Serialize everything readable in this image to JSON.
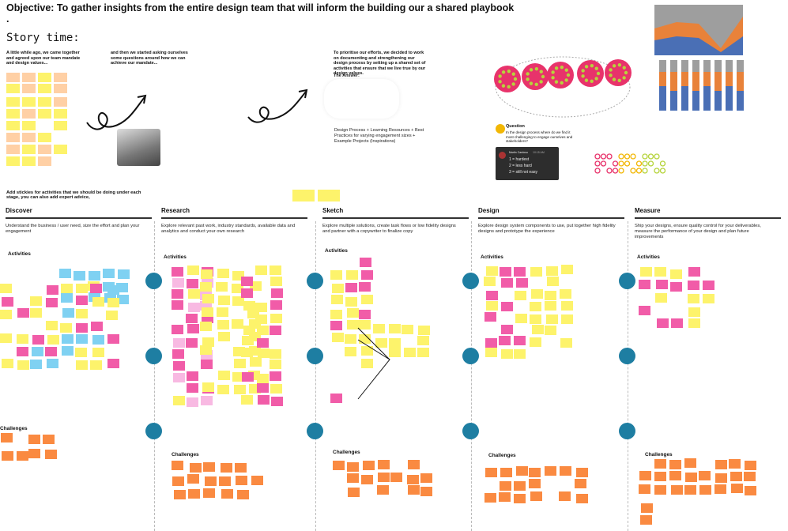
{
  "objective": "Objective: To gather insights from the entire design team that will inform the building our a shared playbook",
  "objective_tail": ".",
  "story_time": "Story time:",
  "intro_1": "A little while ago, we came together and agreed upon our team mandate and design values...",
  "intro_2": "and then we started asking ourselves some questions around how we can achieve our mandate...",
  "intro_3": "To prioritise our efforts, we decided to work on documenting and strengthening our design process by setting up a shared set of activities that ensure that we live true by our design values.",
  "answer_label": "The Answer:",
  "answer_text": "Design Process + Learning Resources + Best Practices for varying engagement sizes + Example Projects (Inspirations)",
  "add_stickies": "Add stickies for activities that we should be doing under each stage, you can also add expert advice,",
  "question_label": "Question",
  "question_text": "In the design process where do we find it most challenging to engage ourselves and stakeholders?",
  "vote_card": {
    "name": "Martin Cardoso",
    "time": "10:15 AM",
    "line1": "1 = hardest",
    "line2": "2 = less hard",
    "line3": "3 = still not easy"
  },
  "stages": [
    {
      "name": "Discover",
      "desc": "Understand the business / user need, size the effort and plan your engagement"
    },
    {
      "name": "Research",
      "desc": "Explore relevant past work, industry standards, available data and analytics and conduct your own research"
    },
    {
      "name": "Sketch",
      "desc": "Explore multiple solutions, create task flows or low fidelity designs and partner with a copywriter to finalize copy"
    },
    {
      "name": "Design",
      "desc": "Explore design system components to use, put together high fidelity designs and prototype the experience"
    },
    {
      "name": "Measure",
      "desc": "Ship your designs, ensure quality control for your deliverables, measure the performance of your design and plan future improvements"
    }
  ],
  "activities_label": "Activities",
  "challenges_label": "Challenges",
  "colors": {
    "yellow": "#fdf36b",
    "orange": "#fa8a41",
    "pink": "#f15ca8",
    "blue": "#7fd1f2",
    "teal": "#1e7ea2",
    "dotpink": "#e8336b",
    "green": "#b6d43c"
  }
}
